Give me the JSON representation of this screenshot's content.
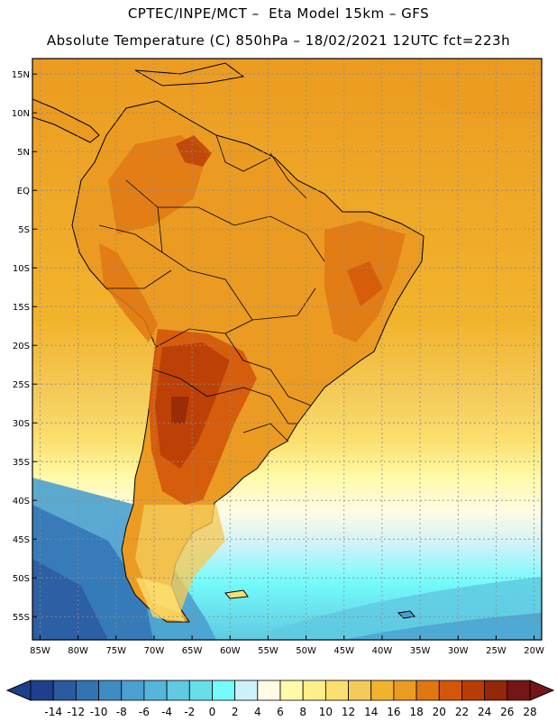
{
  "header": {
    "line1": "CPTEC/INPE/MCT –  Eta Model 15km – GFS",
    "line2": "Absolute Temperature (C) 850hPa – 18/02/2021 12UTC fct=223h"
  },
  "map": {
    "lat_labels": [
      "15N",
      "10N",
      "5N",
      "EQ",
      "5S",
      "10S",
      "15S",
      "20S",
      "25S",
      "30S",
      "35S",
      "40S",
      "45S",
      "50S",
      "55S"
    ],
    "lon_labels": [
      "85W",
      "80W",
      "75W",
      "70W",
      "65W",
      "60W",
      "55W",
      "50W",
      "45W",
      "40W",
      "35W",
      "30W",
      "25W",
      "20W"
    ],
    "lat_values": [
      15,
      10,
      5,
      0,
      -5,
      -10,
      -15,
      -20,
      -25,
      -30,
      -35,
      -40,
      -45,
      -50,
      -55
    ],
    "lon_values": [
      -85,
      -80,
      -75,
      -70,
      -65,
      -60,
      -55,
      -50,
      -45,
      -40,
      -35,
      -30,
      -25,
      -20
    ],
    "extent": {
      "lon_min": -86,
      "lon_max": -19,
      "lat_min": -58,
      "lat_max": 17
    }
  },
  "colorbar": {
    "labels": [
      "-14",
      "-12",
      "-10",
      "-8",
      "-6",
      "-4",
      "-2",
      "0",
      "2",
      "4",
      "6",
      "8",
      "10",
      "12",
      "14",
      "16",
      "18",
      "20",
      "22",
      "24",
      "26",
      "28"
    ],
    "colors": [
      "#1f3f8c",
      "#2a5aa0",
      "#3273b4",
      "#3f8bc4",
      "#4aa0cf",
      "#55b5da",
      "#5fcae2",
      "#66dfea",
      "#74fbfb",
      "#cbf1f9",
      "#fffbe5",
      "#fffaa8",
      "#fdf08a",
      "#fbe070",
      "#f4cb5a",
      "#f2b32c",
      "#eb9b21",
      "#e07713",
      "#d35609",
      "#b93c06",
      "#94260a",
      "#741616"
    ]
  },
  "regions": {
    "ocean_gradient": [
      "#f2b32c",
      "#f4cb5a",
      "#fbe070",
      "#fffaa8",
      "#fffbe5",
      "#cbf1f9",
      "#74fbfb",
      "#5fcae2",
      "#4aa0cf"
    ],
    "land_base": "#f2b32c",
    "land_warm": "#e07713",
    "land_hot": "#d35609",
    "land_hottest": "#b93c06",
    "outline": "#000000"
  }
}
